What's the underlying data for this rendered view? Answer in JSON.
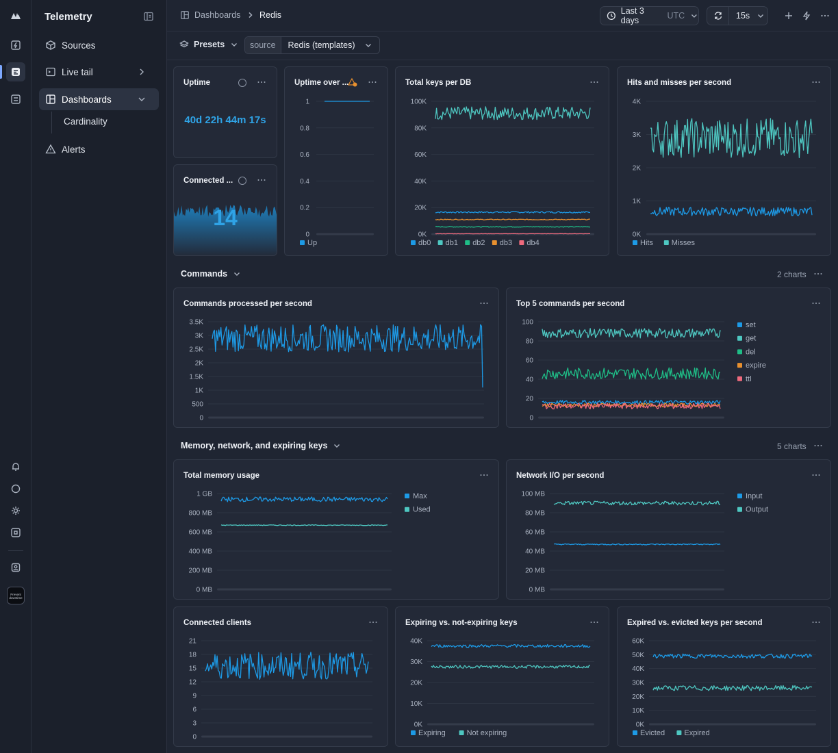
{
  "app": {
    "title": "Telemetry"
  },
  "sidebar": {
    "items": [
      {
        "label": "Sources"
      },
      {
        "label": "Live tail"
      },
      {
        "label": "Dashboards"
      },
      {
        "label": "Alerts"
      }
    ],
    "sub_items": [
      {
        "label": "Cardinality"
      }
    ]
  },
  "rail": {
    "promo_text": "Prevent downtime"
  },
  "header": {
    "breadcrumbs": [
      "Dashboards",
      "Redis"
    ],
    "time_range": "Last 3 days",
    "timezone": "UTC",
    "refresh_interval": "15s"
  },
  "filters": {
    "presets_label": "Presets",
    "source_key": "source",
    "source_value": "Redis (templates)"
  },
  "sections": [
    {
      "title": "Commands",
      "count": "2 charts"
    },
    {
      "title": "Memory, network, and expiring keys",
      "count": "5 charts"
    }
  ],
  "colors": {
    "blue": "#1d9ae6",
    "teal": "#4ec7c1",
    "green": "#1fbd87",
    "orange": "#e8902f",
    "pink": "#ee6a7d",
    "accent_value": "#2fa3e6"
  },
  "stats": {
    "uptime": {
      "title": "Uptime",
      "value": "40d 22h 44m 17s"
    },
    "connected": {
      "title": "Connected ...",
      "value": "14"
    }
  },
  "chart_data": [
    {
      "id": "uptime_over",
      "type": "line",
      "title": "Uptime over ...",
      "yticks": [
        "0",
        "0.2",
        "0.4",
        "0.6",
        "0.8",
        "1"
      ],
      "ylim": [
        0,
        1
      ],
      "series": [
        {
          "name": "Up",
          "color": "#1d9ae6",
          "level": 1,
          "jitter": 0
        }
      ]
    },
    {
      "id": "total_keys",
      "type": "line",
      "title": "Total keys per DB",
      "yticks": [
        "0K",
        "20K",
        "40K",
        "60K",
        "80K",
        "100K"
      ],
      "ylim": [
        0,
        100000
      ],
      "series": [
        {
          "name": "db0",
          "color": "#1d9ae6",
          "level": 16500,
          "jitter": 600
        },
        {
          "name": "db1",
          "color": "#4ec7c1",
          "level": 91000,
          "jitter": 5000
        },
        {
          "name": "db2",
          "color": "#1fbd87",
          "level": 5500,
          "jitter": 300
        },
        {
          "name": "db3",
          "color": "#e8902f",
          "level": 11000,
          "jitter": 300
        },
        {
          "name": "db4",
          "color": "#ee6a7d",
          "level": 300,
          "jitter": 100
        }
      ]
    },
    {
      "id": "hits_misses",
      "type": "line",
      "title": "Hits and misses per second",
      "yticks": [
        "0K",
        "1K",
        "2K",
        "3K",
        "4K"
      ],
      "ylim": [
        0,
        4000
      ],
      "series": [
        {
          "name": "Hits",
          "color": "#1d9ae6",
          "level": 680,
          "jitter": 130
        },
        {
          "name": "Misses",
          "color": "#4ec7c1",
          "level": 2900,
          "jitter": 600
        }
      ]
    },
    {
      "id": "commands_processed",
      "type": "line",
      "title": "Commands processed per second",
      "yticks": [
        "0",
        "500",
        "1K",
        "1.5K",
        "2K",
        "2.5K",
        "3K",
        "3.5K"
      ],
      "ylim": [
        0,
        3500
      ],
      "series": [
        {
          "name": "",
          "color": "#1d9ae6",
          "level": 2900,
          "jitter": 500
        }
      ]
    },
    {
      "id": "top_commands",
      "type": "line",
      "title": "Top 5 commands per second",
      "yticks": [
        "0",
        "20",
        "40",
        "60",
        "80",
        "100"
      ],
      "ylim": [
        0,
        100
      ],
      "series": [
        {
          "name": "set",
          "color": "#1d9ae6",
          "level": 16,
          "jitter": 2
        },
        {
          "name": "get",
          "color": "#4ec7c1",
          "level": 88,
          "jitter": 5
        },
        {
          "name": "del",
          "color": "#1fbd87",
          "level": 46,
          "jitter": 6
        },
        {
          "name": "expire",
          "color": "#e8902f",
          "level": 13,
          "jitter": 2
        },
        {
          "name": "ttl",
          "color": "#ee6a7d",
          "level": 12,
          "jitter": 3
        }
      ]
    },
    {
      "id": "memory",
      "type": "line",
      "title": "Total memory usage",
      "yticks": [
        "0 MB",
        "200 MB",
        "400 MB",
        "600 MB",
        "800 MB",
        "1 GB"
      ],
      "ylim": [
        0,
        1000
      ],
      "series": [
        {
          "name": "Max",
          "color": "#1d9ae6",
          "level": 940,
          "jitter": 25
        },
        {
          "name": "Used",
          "color": "#4ec7c1",
          "level": 670,
          "jitter": 4
        }
      ]
    },
    {
      "id": "network",
      "type": "line",
      "title": "Network I/O per second",
      "yticks": [
        "0 MB",
        "20 MB",
        "40 MB",
        "60 MB",
        "80 MB",
        "100 MB"
      ],
      "ylim": [
        0,
        100
      ],
      "series": [
        {
          "name": "Input",
          "color": "#1d9ae6",
          "level": 47,
          "jitter": 0.6
        },
        {
          "name": "Output",
          "color": "#4ec7c1",
          "level": 90,
          "jitter": 2
        }
      ]
    },
    {
      "id": "connected_clients",
      "type": "line",
      "title": "Connected clients",
      "yticks": [
        "0",
        "3",
        "6",
        "9",
        "12",
        "15",
        "18",
        "21"
      ],
      "ylim": [
        0,
        21
      ],
      "series": [
        {
          "name": "",
          "color": "#1d9ae6",
          "level": 15.5,
          "jitter": 3
        }
      ]
    },
    {
      "id": "expiring",
      "type": "line",
      "title": "Expiring vs. not-expiring keys",
      "yticks": [
        "0K",
        "10K",
        "20K",
        "30K",
        "40K"
      ],
      "ylim": [
        0,
        40000
      ],
      "series": [
        {
          "name": "Expiring",
          "color": "#1d9ae6",
          "level": 37500,
          "jitter": 700
        },
        {
          "name": "Not expiring",
          "color": "#4ec7c1",
          "level": 27500,
          "jitter": 700
        }
      ]
    },
    {
      "id": "expired_evicted",
      "type": "line",
      "title": "Expired vs. evicted keys per second",
      "yticks": [
        "0K",
        "10K",
        "20K",
        "30K",
        "40K",
        "50K",
        "60K"
      ],
      "ylim": [
        0,
        60000
      ],
      "series": [
        {
          "name": "Evicted",
          "color": "#1d9ae6",
          "level": 49000,
          "jitter": 1500
        },
        {
          "name": "Expired",
          "color": "#4ec7c1",
          "level": 26000,
          "jitter": 1800
        }
      ]
    }
  ]
}
